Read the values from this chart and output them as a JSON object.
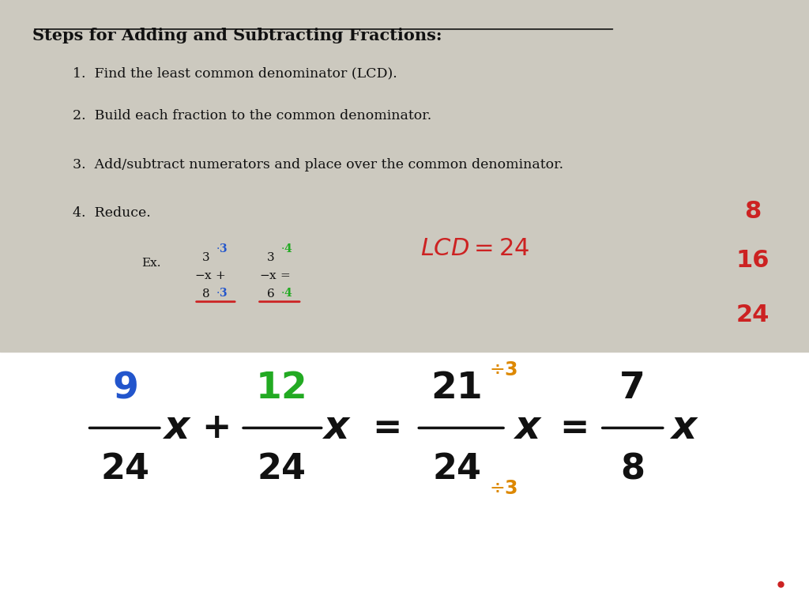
{
  "bg_top": "#ccc9bf",
  "bg_bottom": "#ffffff",
  "title": "Steps for Adding and Subtracting Fractions:",
  "steps": [
    "1.  Find the least common denominator (LCD).",
    "2.  Build each fraction to the common denominator.",
    "3.  Add/subtract numerators and place over the common denominator.",
    "4.  Reduce."
  ],
  "title_color": "#111111",
  "step_color": "#111111",
  "blue": "#2255cc",
  "green": "#22aa22",
  "red": "#cc2222",
  "orange": "#dd8800",
  "black": "#111111"
}
